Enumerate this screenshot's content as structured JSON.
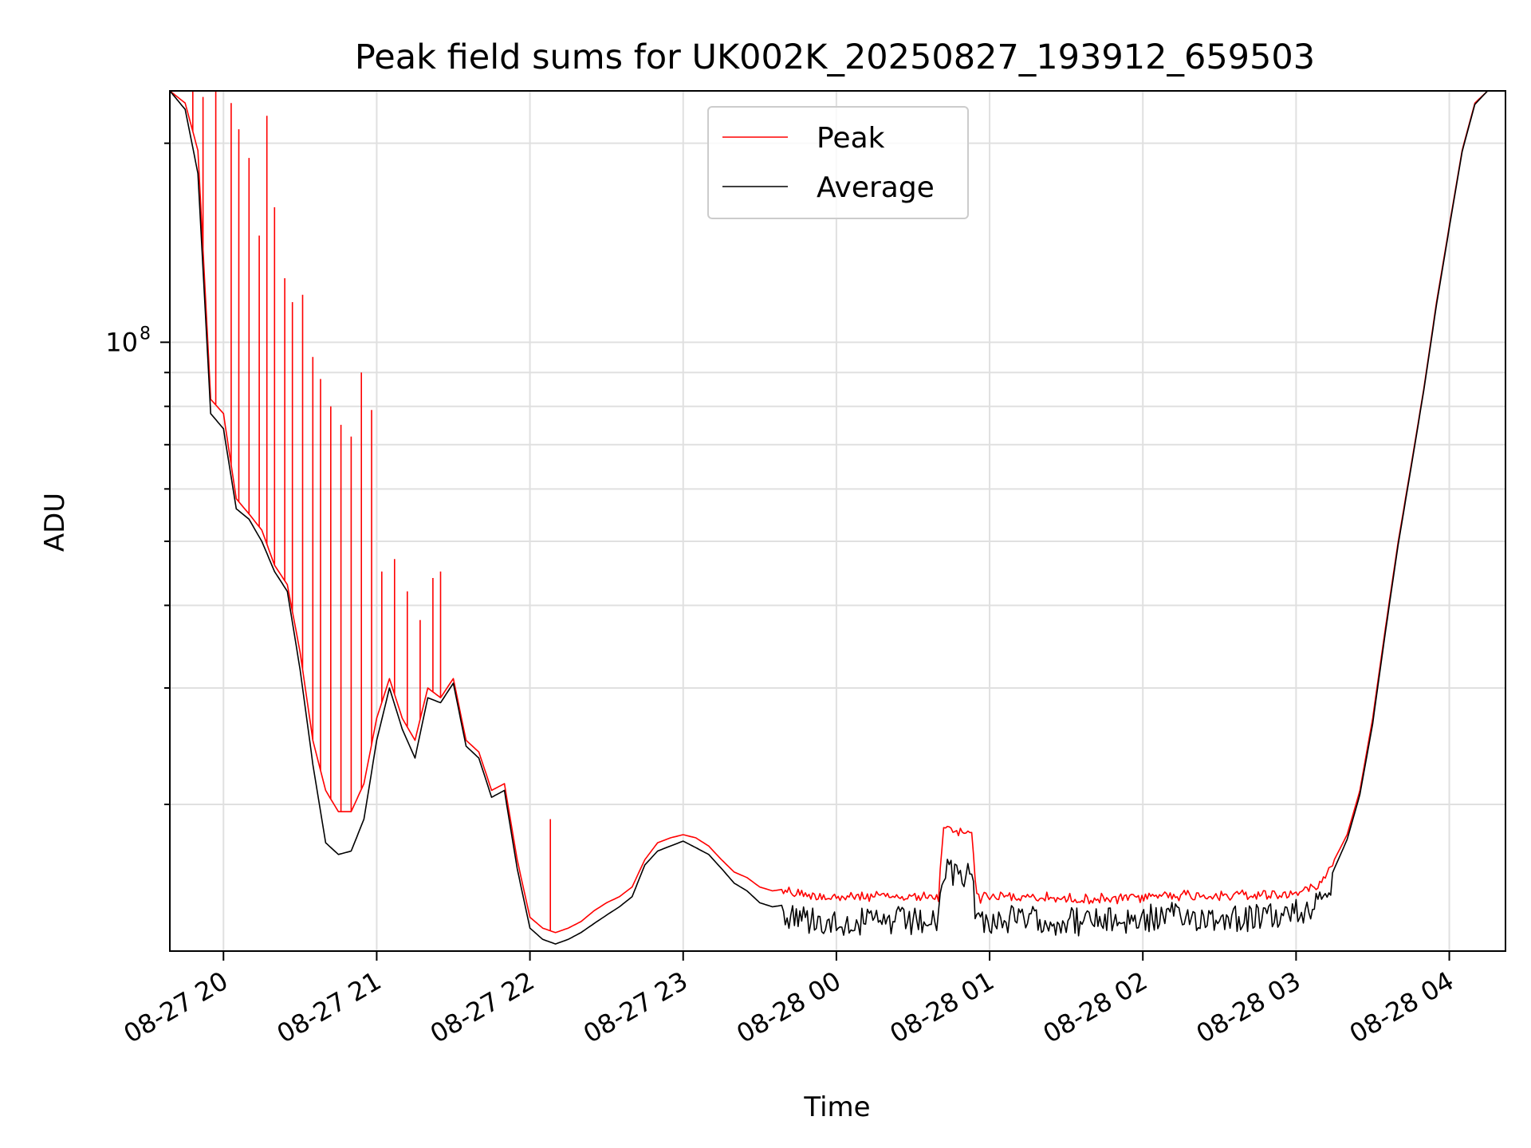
{
  "chart_data": {
    "type": "line",
    "title": "Peak field sums for UK002K_20250827_193912_659503",
    "xlabel": "Time",
    "ylabel": "ADU",
    "y_scale": "log",
    "ylim": [
      12000000,
      240000000
    ],
    "y_major_ticks": [
      {
        "value": 100000000,
        "base": "10",
        "exponent": "8"
      }
    ],
    "y_minor_ticks": [
      20000000,
      30000000,
      40000000,
      50000000,
      60000000,
      70000000,
      80000000,
      90000000,
      200000000
    ],
    "xlim": [
      "2025-08-27 19:39",
      "2025-08-28 04:22"
    ],
    "x_ticks": [
      {
        "time": "2025-08-27 20:00",
        "label": "08-27 20"
      },
      {
        "time": "2025-08-27 21:00",
        "label": "08-27 21"
      },
      {
        "time": "2025-08-27 22:00",
        "label": "08-27 22"
      },
      {
        "time": "2025-08-27 23:00",
        "label": "08-27 23"
      },
      {
        "time": "2025-08-28 00:00",
        "label": "08-28 00"
      },
      {
        "time": "2025-08-28 01:00",
        "label": "08-28 01"
      },
      {
        "time": "2025-08-28 02:00",
        "label": "08-28 02"
      },
      {
        "time": "2025-08-28 03:00",
        "label": "08-28 03"
      },
      {
        "time": "2025-08-28 04:00",
        "label": "08-28 04"
      }
    ],
    "grid": true,
    "legend_position": "upper-center",
    "series": [
      {
        "name": "Peak",
        "color": "#ff0000",
        "points": [
          [
            "2025-08-27 19:39",
            240000000
          ],
          [
            "2025-08-27 19:45",
            230000000
          ],
          [
            "2025-08-27 19:50",
            195000000
          ],
          [
            "2025-08-27 19:55",
            82000000
          ],
          [
            "2025-08-27 20:00",
            78000000
          ],
          [
            "2025-08-27 20:05",
            58000000
          ],
          [
            "2025-08-27 20:10",
            55000000
          ],
          [
            "2025-08-27 20:15",
            52000000
          ],
          [
            "2025-08-27 20:20",
            46000000
          ],
          [
            "2025-08-27 20:25",
            43000000
          ],
          [
            "2025-08-27 20:30",
            34000000
          ],
          [
            "2025-08-27 20:35",
            25000000
          ],
          [
            "2025-08-27 20:40",
            21000000
          ],
          [
            "2025-08-27 20:45",
            19500000
          ],
          [
            "2025-08-27 20:50",
            19500000
          ],
          [
            "2025-08-27 20:55",
            21500000
          ],
          [
            "2025-08-27 21:00",
            27000000
          ],
          [
            "2025-08-27 21:05",
            31000000
          ],
          [
            "2025-08-27 21:10",
            27000000
          ],
          [
            "2025-08-27 21:15",
            25000000
          ],
          [
            "2025-08-27 21:20",
            30000000
          ],
          [
            "2025-08-27 21:25",
            29000000
          ],
          [
            "2025-08-27 21:30",
            31000000
          ],
          [
            "2025-08-27 21:35",
            25000000
          ],
          [
            "2025-08-27 21:40",
            24000000
          ],
          [
            "2025-08-27 21:45",
            21000000
          ],
          [
            "2025-08-27 21:50",
            21500000
          ],
          [
            "2025-08-27 21:55",
            16500000
          ],
          [
            "2025-08-27 22:00",
            13500000
          ],
          [
            "2025-08-27 22:05",
            13000000
          ],
          [
            "2025-08-27 22:10",
            12800000
          ],
          [
            "2025-08-27 22:15",
            13000000
          ],
          [
            "2025-08-27 22:20",
            13300000
          ],
          [
            "2025-08-27 22:25",
            13800000
          ],
          [
            "2025-08-27 22:30",
            14200000
          ],
          [
            "2025-08-27 22:35",
            14500000
          ],
          [
            "2025-08-27 22:40",
            15000000
          ],
          [
            "2025-08-27 22:45",
            16500000
          ],
          [
            "2025-08-27 22:50",
            17500000
          ],
          [
            "2025-08-27 22:55",
            17800000
          ],
          [
            "2025-08-27 23:00",
            18000000
          ],
          [
            "2025-08-27 23:05",
            17800000
          ],
          [
            "2025-08-27 23:10",
            17300000
          ],
          [
            "2025-08-27 23:15",
            16500000
          ],
          [
            "2025-08-27 23:20",
            15800000
          ],
          [
            "2025-08-27 23:25",
            15500000
          ],
          [
            "2025-08-27 23:30",
            15000000
          ],
          [
            "2025-08-27 23:35",
            14800000
          ],
          [
            "2025-08-27 23:40",
            14900000
          ],
          [
            "2025-08-27 23:50",
            14700000
          ],
          [
            "2025-08-28 00:00",
            14600000
          ],
          [
            "2025-08-28 00:10",
            14600000
          ],
          [
            "2025-08-28 00:20",
            14600000
          ],
          [
            "2025-08-28 00:30",
            14600000
          ],
          [
            "2025-08-28 00:40",
            14600000
          ],
          [
            "2025-08-28 00:42",
            18500000
          ],
          [
            "2025-08-28 00:50",
            18300000
          ],
          [
            "2025-08-28 00:53",
            18400000
          ],
          [
            "2025-08-28 00:55",
            14600000
          ],
          [
            "2025-08-28 01:10",
            14600000
          ],
          [
            "2025-08-28 01:30",
            14500000
          ],
          [
            "2025-08-28 01:50",
            14500000
          ],
          [
            "2025-08-28 02:10",
            14700000
          ],
          [
            "2025-08-28 02:30",
            14700000
          ],
          [
            "2025-08-28 02:50",
            14700000
          ],
          [
            "2025-08-28 03:00",
            14800000
          ],
          [
            "2025-08-28 03:05",
            15000000
          ],
          [
            "2025-08-28 03:10",
            15500000
          ],
          [
            "2025-08-28 03:15",
            16500000
          ],
          [
            "2025-08-28 03:20",
            18000000
          ],
          [
            "2025-08-28 03:25",
            21000000
          ],
          [
            "2025-08-28 03:30",
            27000000
          ],
          [
            "2025-08-28 03:35",
            37000000
          ],
          [
            "2025-08-28 03:40",
            50000000
          ],
          [
            "2025-08-28 03:45",
            65000000
          ],
          [
            "2025-08-28 03:50",
            85000000
          ],
          [
            "2025-08-28 03:55",
            115000000
          ],
          [
            "2025-08-28 04:00",
            150000000
          ],
          [
            "2025-08-28 04:05",
            195000000
          ],
          [
            "2025-08-28 04:10",
            230000000
          ],
          [
            "2025-08-28 04:15",
            240000000
          ],
          [
            "2025-08-28 04:22",
            240000000
          ]
        ],
        "spikes": [
          [
            "2025-08-27 19:48",
            240000000
          ],
          [
            "2025-08-27 19:52",
            235000000
          ],
          [
            "2025-08-27 19:57",
            240000000
          ],
          [
            "2025-08-27 20:03",
            230000000
          ],
          [
            "2025-08-27 20:06",
            210000000
          ],
          [
            "2025-08-27 20:10",
            190000000
          ],
          [
            "2025-08-27 20:14",
            145000000
          ],
          [
            "2025-08-27 20:17",
            220000000
          ],
          [
            "2025-08-27 20:20",
            160000000
          ],
          [
            "2025-08-27 20:24",
            125000000
          ],
          [
            "2025-08-27 20:27",
            115000000
          ],
          [
            "2025-08-27 20:31",
            118000000
          ],
          [
            "2025-08-27 20:35",
            95000000
          ],
          [
            "2025-08-27 20:38",
            88000000
          ],
          [
            "2025-08-27 20:42",
            80000000
          ],
          [
            "2025-08-27 20:46",
            75000000
          ],
          [
            "2025-08-27 20:50",
            72000000
          ],
          [
            "2025-08-27 20:54",
            90000000
          ],
          [
            "2025-08-27 20:58",
            79000000
          ],
          [
            "2025-08-27 21:02",
            45000000
          ],
          [
            "2025-08-27 21:07",
            47000000
          ],
          [
            "2025-08-27 21:12",
            42000000
          ],
          [
            "2025-08-27 21:17",
            38000000
          ],
          [
            "2025-08-27 21:22",
            44000000
          ],
          [
            "2025-08-27 21:25",
            45000000
          ],
          [
            "2025-08-27 22:08",
            19000000
          ]
        ]
      },
      {
        "name": "Average",
        "color": "#000000",
        "points": [
          [
            "2025-08-27 19:39",
            240000000
          ],
          [
            "2025-08-27 19:45",
            225000000
          ],
          [
            "2025-08-27 19:50",
            180000000
          ],
          [
            "2025-08-27 19:55",
            78000000
          ],
          [
            "2025-08-27 20:00",
            74000000
          ],
          [
            "2025-08-27 20:05",
            56000000
          ],
          [
            "2025-08-27 20:10",
            54000000
          ],
          [
            "2025-08-27 20:15",
            50000000
          ],
          [
            "2025-08-27 20:20",
            45000000
          ],
          [
            "2025-08-27 20:25",
            42000000
          ],
          [
            "2025-08-27 20:30",
            32000000
          ],
          [
            "2025-08-27 20:35",
            23000000
          ],
          [
            "2025-08-27 20:40",
            17500000
          ],
          [
            "2025-08-27 20:45",
            16800000
          ],
          [
            "2025-08-27 20:50",
            17000000
          ],
          [
            "2025-08-27 20:55",
            19000000
          ],
          [
            "2025-08-27 21:00",
            25000000
          ],
          [
            "2025-08-27 21:05",
            30000000
          ],
          [
            "2025-08-27 21:10",
            26000000
          ],
          [
            "2025-08-27 21:15",
            23500000
          ],
          [
            "2025-08-27 21:20",
            29000000
          ],
          [
            "2025-08-27 21:25",
            28500000
          ],
          [
            "2025-08-27 21:30",
            30500000
          ],
          [
            "2025-08-27 21:35",
            24500000
          ],
          [
            "2025-08-27 21:40",
            23500000
          ],
          [
            "2025-08-27 21:45",
            20500000
          ],
          [
            "2025-08-27 21:50",
            21000000
          ],
          [
            "2025-08-27 21:55",
            16000000
          ],
          [
            "2025-08-27 22:00",
            13000000
          ],
          [
            "2025-08-27 22:05",
            12500000
          ],
          [
            "2025-08-27 22:10",
            12300000
          ],
          [
            "2025-08-27 22:15",
            12500000
          ],
          [
            "2025-08-27 22:20",
            12800000
          ],
          [
            "2025-08-27 22:25",
            13200000
          ],
          [
            "2025-08-27 22:30",
            13600000
          ],
          [
            "2025-08-27 22:35",
            14000000
          ],
          [
            "2025-08-27 22:40",
            14500000
          ],
          [
            "2025-08-27 22:45",
            16200000
          ],
          [
            "2025-08-27 22:50",
            17000000
          ],
          [
            "2025-08-27 22:55",
            17300000
          ],
          [
            "2025-08-27 23:00",
            17600000
          ],
          [
            "2025-08-27 23:05",
            17200000
          ],
          [
            "2025-08-27 23:10",
            16800000
          ],
          [
            "2025-08-27 23:15",
            16000000
          ],
          [
            "2025-08-27 23:20",
            15200000
          ],
          [
            "2025-08-27 23:25",
            14800000
          ],
          [
            "2025-08-27 23:30",
            14200000
          ],
          [
            "2025-08-27 23:35",
            14000000
          ],
          [
            "2025-08-27 23:40",
            14100000
          ],
          [
            "2025-08-27 23:50",
            13900000
          ],
          [
            "2025-08-28 00:00",
            13800000
          ],
          [
            "2025-08-28 00:10",
            13800000
          ],
          [
            "2025-08-28 00:20",
            13800000
          ],
          [
            "2025-08-28 00:30",
            13800000
          ],
          [
            "2025-08-28 00:40",
            13800000
          ],
          [
            "2025-08-28 00:42",
            16400000
          ],
          [
            "2025-08-28 00:50",
            16300000
          ],
          [
            "2025-08-28 00:53",
            16400000
          ],
          [
            "2025-08-28 00:55",
            13800000
          ],
          [
            "2025-08-28 01:10",
            13900000
          ],
          [
            "2025-08-28 01:30",
            13800000
          ],
          [
            "2025-08-28 01:50",
            13800000
          ],
          [
            "2025-08-28 02:10",
            14000000
          ],
          [
            "2025-08-28 02:30",
            14000000
          ],
          [
            "2025-08-28 02:50",
            14000000
          ],
          [
            "2025-08-28 03:00",
            14200000
          ],
          [
            "2025-08-28 03:05",
            14500000
          ],
          [
            "2025-08-28 03:10",
            15000000
          ],
          [
            "2025-08-28 03:15",
            16000000
          ],
          [
            "2025-08-28 03:20",
            17700000
          ],
          [
            "2025-08-28 03:25",
            20700000
          ],
          [
            "2025-08-28 03:30",
            26500000
          ],
          [
            "2025-08-28 03:35",
            36500000
          ],
          [
            "2025-08-28 03:40",
            49500000
          ],
          [
            "2025-08-28 03:45",
            64500000
          ],
          [
            "2025-08-28 03:50",
            84500000
          ],
          [
            "2025-08-28 03:55",
            114000000
          ],
          [
            "2025-08-28 04:00",
            149000000
          ],
          [
            "2025-08-28 04:05",
            194000000
          ],
          [
            "2025-08-28 04:10",
            229000000
          ],
          [
            "2025-08-28 04:15",
            240000000
          ],
          [
            "2025-08-28 04:22",
            240000000
          ]
        ]
      }
    ]
  }
}
